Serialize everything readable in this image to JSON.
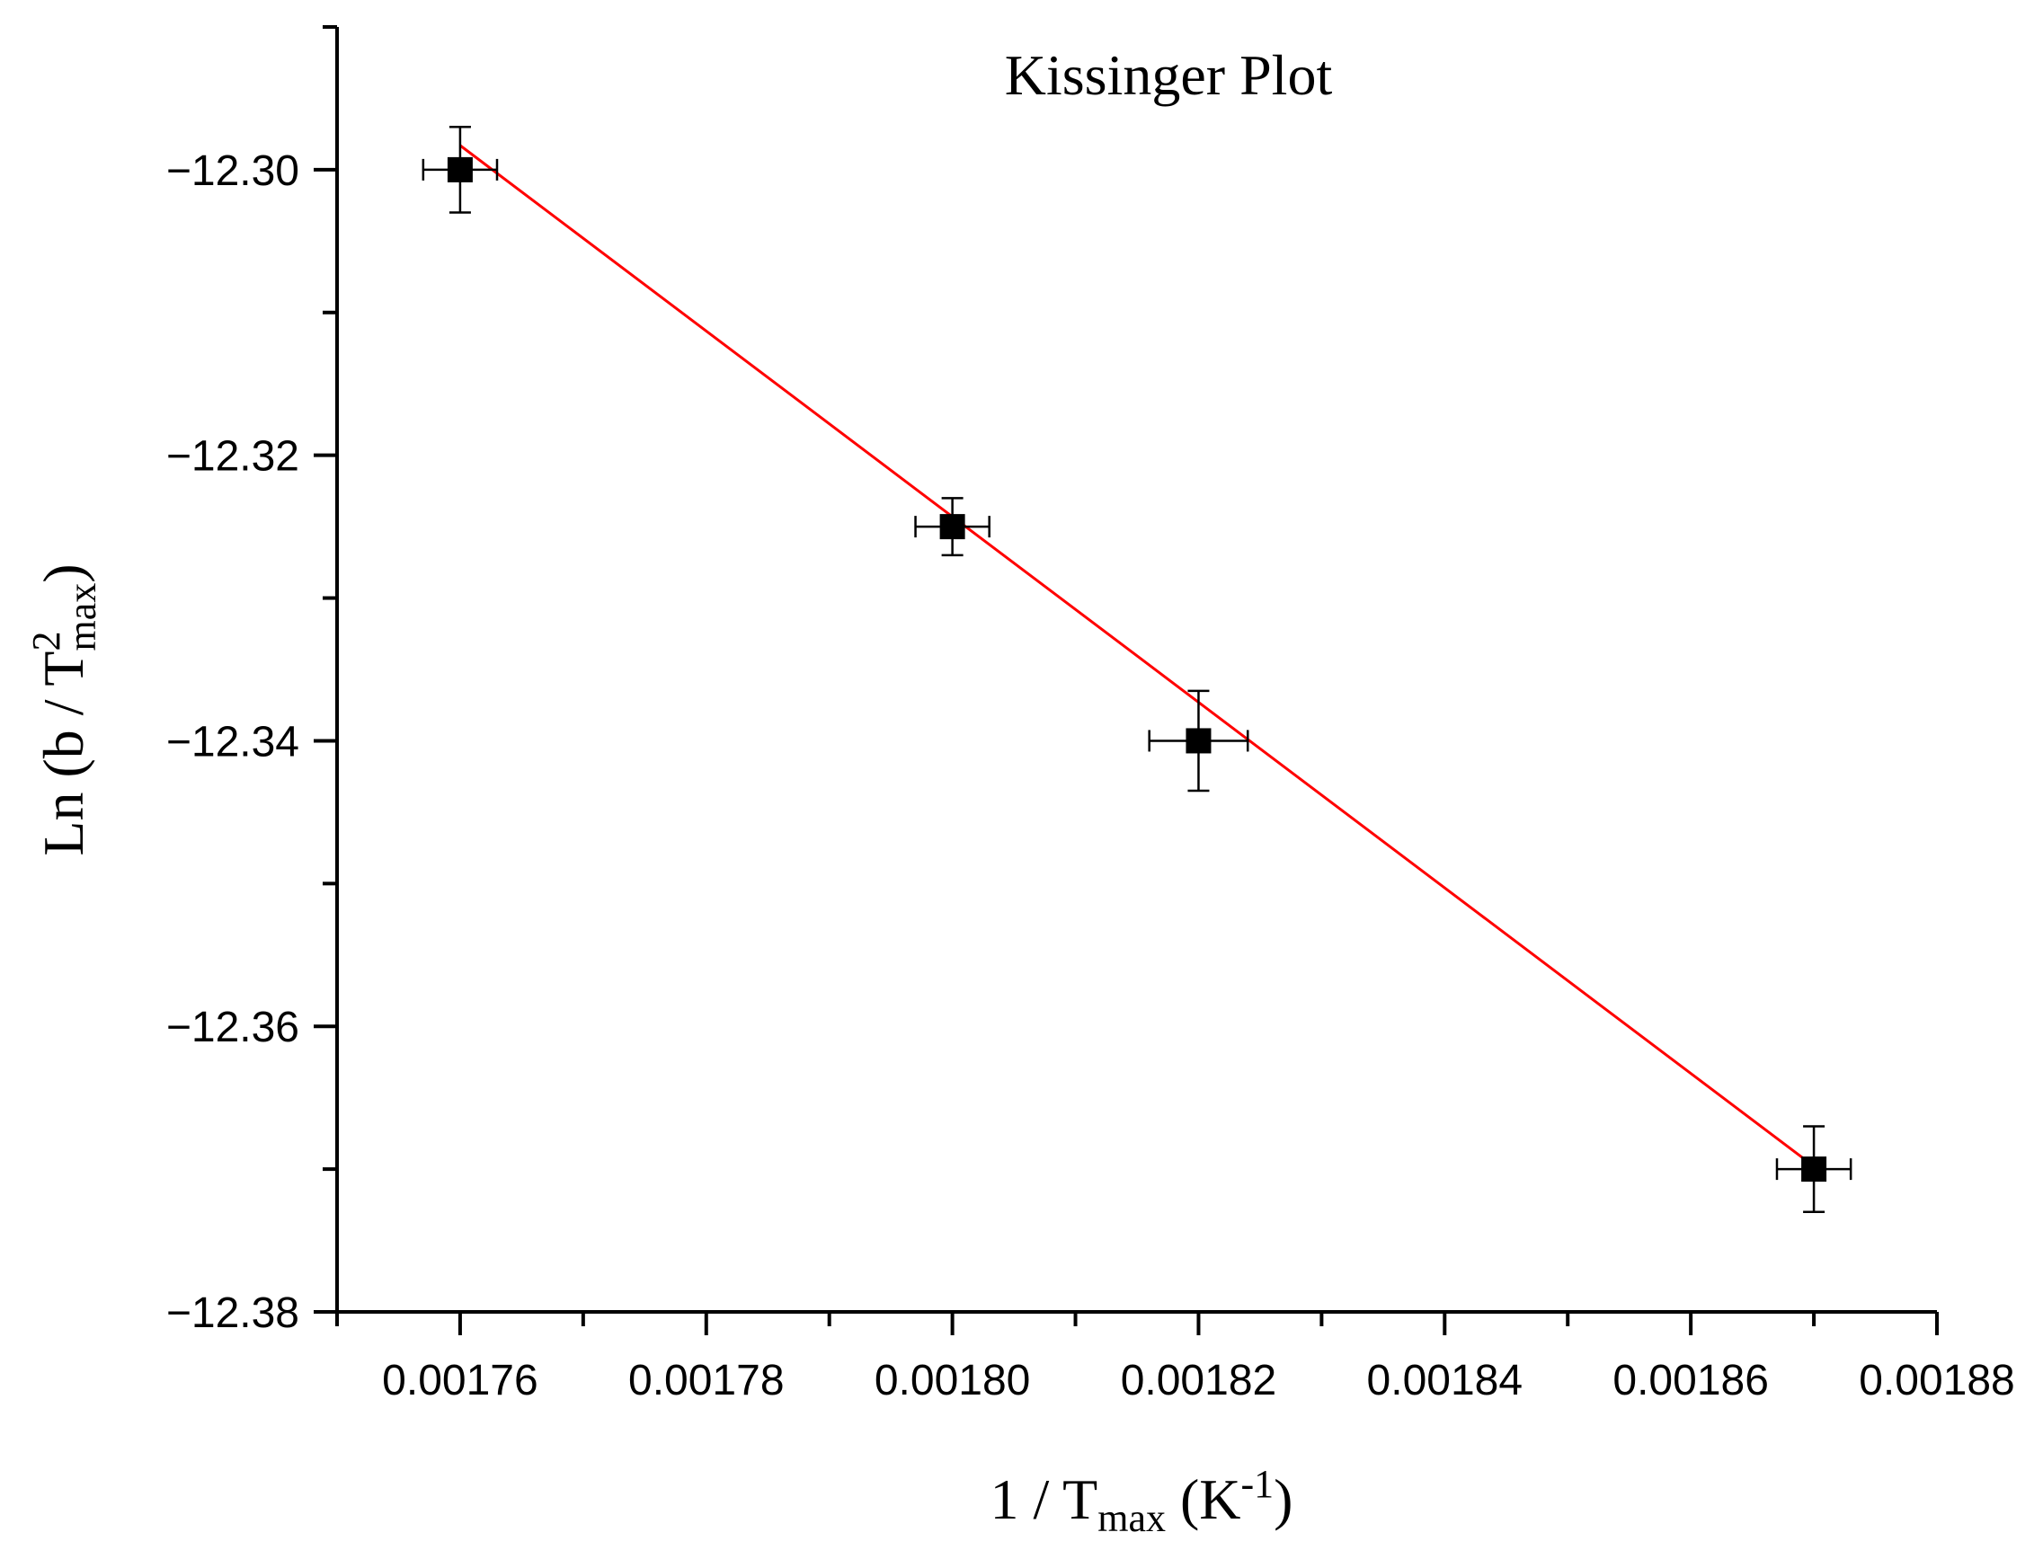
{
  "chart_data": {
    "type": "scatter",
    "title": "Kissinger Plot",
    "xlabel": {
      "prefix": "1 / T",
      "sub": "max",
      "unit_open": " (K",
      "unit_sup": "-1",
      "unit_close": ")"
    },
    "ylabel": {
      "prefix": "Ln (b / T",
      "sup": "2",
      "sub": "max",
      "suffix": ")"
    },
    "xlim": [
      0.00175,
      0.00188
    ],
    "ylim": [
      -12.38,
      -12.29
    ],
    "x_ticks": [
      "0.00176",
      "0.00178",
      "0.00180",
      "0.00182",
      "0.00184",
      "0.00186",
      "0.00188"
    ],
    "y_ticks": [
      "−12.30",
      "−12.32",
      "−12.34",
      "−12.36",
      "−12.38"
    ],
    "grid": false,
    "series": [
      {
        "x": [
          0.00176,
          0.0018,
          0.00182,
          0.00187
        ],
        "y": [
          -12.3,
          -12.325,
          -12.34,
          -12.37
        ],
        "x_err": [
          3e-06,
          3e-06,
          4e-06,
          3e-06
        ],
        "y_err": [
          0.003,
          0.002,
          0.0035,
          0.003
        ],
        "marker": "square",
        "color": "#000000"
      }
    ],
    "fit_line": {
      "x": [
        0.00176,
        0.00187
      ],
      "y": [
        -12.2983,
        -12.3698
      ],
      "color": "#ff0000"
    }
  }
}
